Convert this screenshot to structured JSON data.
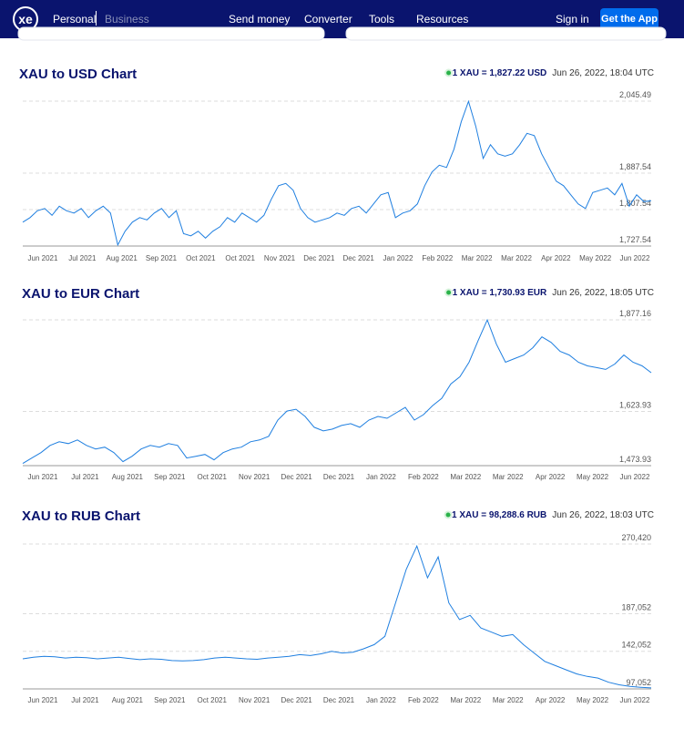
{
  "nav": {
    "logo": "xe",
    "personal": "Personal",
    "business": "Business",
    "links": [
      "Send money",
      "Converter",
      "Tools",
      "Resources"
    ],
    "sign_in": "Sign in",
    "cta": "Get the App"
  },
  "chart_data": [
    {
      "type": "line",
      "title": "XAU to USD Chart",
      "rate": "1 XAU = 1,827.22 USD",
      "timestamp": "Jun 26, 2022, 18:04 UTC",
      "xticks": [
        "Jun 2021",
        "Jul 2021",
        "Aug 2021",
        "Sep 2021",
        "Oct 2021",
        "Oct 2021",
        "Nov 2021",
        "Dec 2021",
        "Dec 2021",
        "Jan 2022",
        "Feb 2022",
        "Mar 2022",
        "Mar 2022",
        "Apr 2022",
        "May 2022",
        "Jun 2022"
      ],
      "ylim": [
        1727.54,
        2045.49
      ],
      "yticks": [
        {
          "value": 1727.54,
          "label": "1,727.54"
        },
        {
          "value": 1807.54,
          "label": "1,807.54"
        },
        {
          "value": 1887.54,
          "label": "1,887.54"
        },
        {
          "value": 2045.49,
          "label": "2,045.49"
        }
      ],
      "grid": true,
      "series": [
        {
          "name": "XAU/USD",
          "color": "#1f7fe0",
          "values": [
            1780,
            1790,
            1805,
            1810,
            1795,
            1815,
            1805,
            1800,
            1810,
            1790,
            1805,
            1815,
            1800,
            1730,
            1760,
            1780,
            1790,
            1785,
            1800,
            1810,
            1790,
            1805,
            1755,
            1750,
            1760,
            1745,
            1760,
            1770,
            1790,
            1780,
            1800,
            1790,
            1780,
            1795,
            1830,
            1860,
            1865,
            1850,
            1810,
            1790,
            1780,
            1785,
            1790,
            1800,
            1795,
            1810,
            1815,
            1800,
            1820,
            1840,
            1845,
            1790,
            1800,
            1805,
            1820,
            1860,
            1890,
            1905,
            1900,
            1940,
            2000,
            2045,
            1990,
            1920,
            1950,
            1930,
            1925,
            1930,
            1950,
            1975,
            1970,
            1930,
            1900,
            1870,
            1860,
            1840,
            1820,
            1810,
            1845,
            1850,
            1855,
            1840,
            1865,
            1815,
            1840,
            1825,
            1827.22
          ]
        }
      ]
    },
    {
      "type": "line",
      "title": "XAU to EUR Chart",
      "rate": "1 XAU = 1,730.93 EUR",
      "timestamp": "Jun 26, 2022, 18:05 UTC",
      "xticks": [
        "Jun 2021",
        "Jul 2021",
        "Aug 2021",
        "Sep 2021",
        "Oct 2021",
        "Nov 2021",
        "Dec 2021",
        "Dec 2021",
        "Jan 2022",
        "Feb 2022",
        "Mar 2022",
        "Mar 2022",
        "Apr 2022",
        "May 2022",
        "Jun 2022"
      ],
      "ylim": [
        1473.93,
        1877.16
      ],
      "yticks": [
        {
          "value": 1473.93,
          "label": "1,473.93"
        },
        {
          "value": 1623.93,
          "label": "1,623.93"
        },
        {
          "value": 1877.16,
          "label": "1,877.16"
        }
      ],
      "grid": true,
      "series": [
        {
          "name": "XAU/EUR",
          "color": "#1f7fe0",
          "values": [
            1480,
            1495,
            1510,
            1530,
            1540,
            1535,
            1545,
            1530,
            1520,
            1525,
            1510,
            1485,
            1500,
            1520,
            1530,
            1525,
            1535,
            1530,
            1495,
            1500,
            1505,
            1490,
            1510,
            1520,
            1525,
            1540,
            1545,
            1555,
            1600,
            1625,
            1630,
            1610,
            1580,
            1570,
            1575,
            1585,
            1590,
            1580,
            1600,
            1610,
            1605,
            1620,
            1635,
            1600,
            1615,
            1640,
            1660,
            1700,
            1720,
            1760,
            1820,
            1877,
            1810,
            1760,
            1770,
            1780,
            1800,
            1830,
            1815,
            1790,
            1780,
            1760,
            1750,
            1745,
            1740,
            1755,
            1780,
            1760,
            1750,
            1730.93
          ]
        }
      ]
    },
    {
      "type": "line",
      "title": "XAU to RUB Chart",
      "rate": "1 XAU = 98,288.6 RUB",
      "timestamp": "Jun 26, 2022, 18:03 UTC",
      "xticks": [
        "Jun 2021",
        "Jul 2021",
        "Aug 2021",
        "Sep 2021",
        "Oct 2021",
        "Nov 2021",
        "Dec 2021",
        "Dec 2021",
        "Jan 2022",
        "Feb 2022",
        "Mar 2022",
        "Mar 2022",
        "Apr 2022",
        "May 2022",
        "Jun 2022"
      ],
      "ylim": [
        97052,
        270420
      ],
      "yticks": [
        {
          "value": 97052,
          "label": "97,052"
        },
        {
          "value": 142052,
          "label": "142,052"
        },
        {
          "value": 187052,
          "label": "187,052"
        },
        {
          "value": 270420,
          "label": "270,420"
        }
      ],
      "grid": true,
      "series": [
        {
          "name": "XAU/RUB",
          "color": "#1f7fe0",
          "values": [
            133000,
            135000,
            136000,
            135500,
            134000,
            135000,
            134500,
            133000,
            134000,
            135000,
            133500,
            132000,
            133000,
            132500,
            131000,
            130500,
            131000,
            132000,
            134000,
            135000,
            134000,
            133000,
            132500,
            134000,
            135000,
            136000,
            138000,
            137000,
            139000,
            142000,
            140000,
            141000,
            145000,
            150000,
            160000,
            200000,
            240000,
            268000,
            230000,
            255000,
            200000,
            180000,
            185000,
            170000,
            165000,
            160000,
            162000,
            150000,
            140000,
            130000,
            125000,
            120000,
            115000,
            112000,
            110000,
            105000,
            102000,
            100000,
            99000,
            98288.6
          ]
        }
      ]
    }
  ]
}
